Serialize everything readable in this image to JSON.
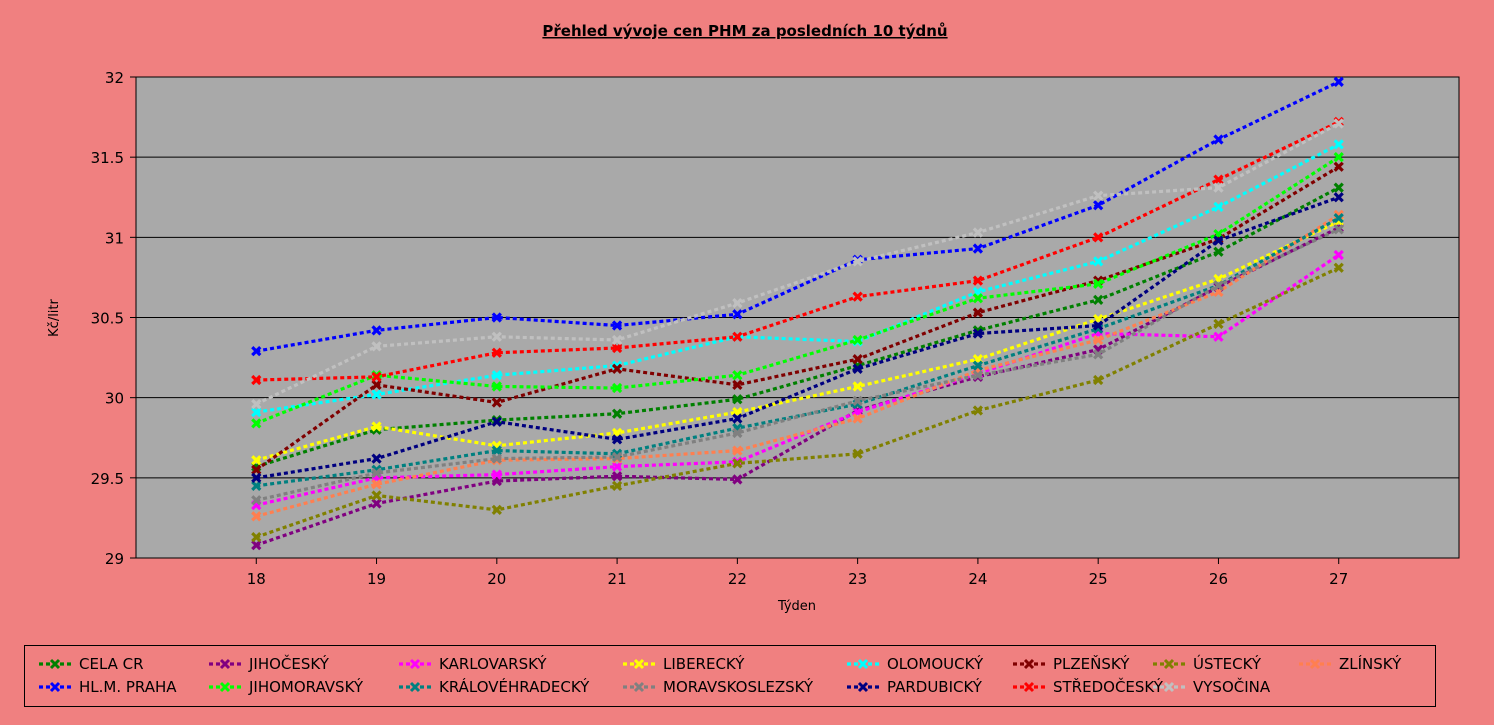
{
  "chart_data": {
    "type": "line",
    "title": "Přehled vývoje cen PHM za posledních 10 týdnů",
    "xlabel": "Týden",
    "ylabel": "Kč/litr",
    "x": [
      18,
      19,
      20,
      21,
      22,
      23,
      24,
      25,
      26,
      27
    ],
    "xlim": [
      17,
      28
    ],
    "ylim": [
      29,
      32
    ],
    "yticks": [
      "29",
      "29.5",
      "30",
      "30.5",
      "31",
      "31.5",
      "32"
    ],
    "grid": true,
    "legend_position": "bottom",
    "series": [
      {
        "name": "CELA CR",
        "color": "#008000",
        "values": [
          29.57,
          29.8,
          29.86,
          29.9,
          29.99,
          30.2,
          30.42,
          30.61,
          30.91,
          31.31
        ]
      },
      {
        "name": "JIHOČESKÝ",
        "color": "#800080",
        "values": [
          29.08,
          29.34,
          29.48,
          29.51,
          29.49,
          29.92,
          30.13,
          30.3,
          30.69,
          31.06
        ]
      },
      {
        "name": "KARLOVARSKÝ",
        "color": "#ff00ff",
        "values": [
          29.33,
          29.5,
          29.52,
          29.57,
          29.6,
          29.91,
          30.15,
          30.4,
          30.38,
          30.89
        ]
      },
      {
        "name": "LIBERECKÝ",
        "color": "#ffff00",
        "values": [
          29.61,
          29.82,
          29.7,
          29.78,
          29.91,
          30.07,
          30.24,
          30.49,
          30.74,
          31.1
        ]
      },
      {
        "name": "OLOMOUCKÝ",
        "color": "#00ffff",
        "values": [
          29.91,
          30.02,
          30.14,
          30.2,
          30.38,
          30.35,
          30.66,
          30.85,
          31.19,
          31.58
        ]
      },
      {
        "name": "PLZEŇSKÝ",
        "color": "#800000",
        "values": [
          29.55,
          30.08,
          29.97,
          30.18,
          30.08,
          30.24,
          30.53,
          30.73,
          30.99,
          31.44
        ]
      },
      {
        "name": "ÚSTECKÝ",
        "color": "#808000",
        "values": [
          29.13,
          29.39,
          29.3,
          29.45,
          29.59,
          29.65,
          29.92,
          30.11,
          30.46,
          30.81
        ]
      },
      {
        "name": "ZLÍNSKÝ",
        "color": "#ff7f50",
        "values": [
          29.26,
          29.46,
          29.61,
          29.62,
          29.67,
          29.87,
          30.17,
          30.36,
          30.66,
          31.14
        ]
      },
      {
        "name": "HL.M. PRAHA",
        "color": "#0000ff",
        "values": [
          30.29,
          30.42,
          30.5,
          30.45,
          30.52,
          30.86,
          30.93,
          31.2,
          31.61,
          31.97
        ]
      },
      {
        "name": "JIHOMORAVSKÝ",
        "color": "#00ff00",
        "values": [
          29.84,
          30.14,
          30.07,
          30.06,
          30.14,
          30.36,
          30.62,
          30.71,
          31.02,
          31.5
        ]
      },
      {
        "name": "KRÁLOVÉHRADECKÝ",
        "color": "#008080",
        "values": [
          29.45,
          29.55,
          29.67,
          29.65,
          29.81,
          29.96,
          30.2,
          30.43,
          30.7,
          31.12
        ]
      },
      {
        "name": "MORAVSKOSLEZSKÝ",
        "color": "#808080",
        "values": [
          29.36,
          29.53,
          29.62,
          29.63,
          29.78,
          29.98,
          30.14,
          30.27,
          30.7,
          31.05
        ]
      },
      {
        "name": "PARDUBICKÝ",
        "color": "#000080",
        "values": [
          29.5,
          29.62,
          29.85,
          29.74,
          29.87,
          30.18,
          30.4,
          30.45,
          30.98,
          31.25
        ]
      },
      {
        "name": "STŘEDOČESKÝ",
        "color": "#ff0000",
        "values": [
          30.11,
          30.13,
          30.28,
          30.31,
          30.38,
          30.63,
          30.73,
          31.0,
          31.36,
          31.72
        ]
      },
      {
        "name": "VYSOČINA",
        "color": "#c0c0c0",
        "values": [
          29.96,
          30.32,
          30.38,
          30.36,
          30.59,
          30.85,
          31.03,
          31.26,
          31.31,
          31.71
        ]
      }
    ],
    "legend_order": [
      "CELA CR",
      "JIHOČESKÝ",
      "KARLOVARSKÝ",
      "LIBERECKÝ",
      "OLOMOUCKÝ",
      "PLZEŇSKÝ",
      "ÚSTECKÝ",
      "ZLÍNSKÝ",
      "HL.M. PRAHA",
      "JIHOMORAVSKÝ",
      "KRÁLOVÉHRADECKÝ",
      "MORAVSKOSLEZSKÝ",
      "PARDUBICKÝ",
      "STŘEDOČESKÝ",
      "VYSOČINA"
    ]
  }
}
